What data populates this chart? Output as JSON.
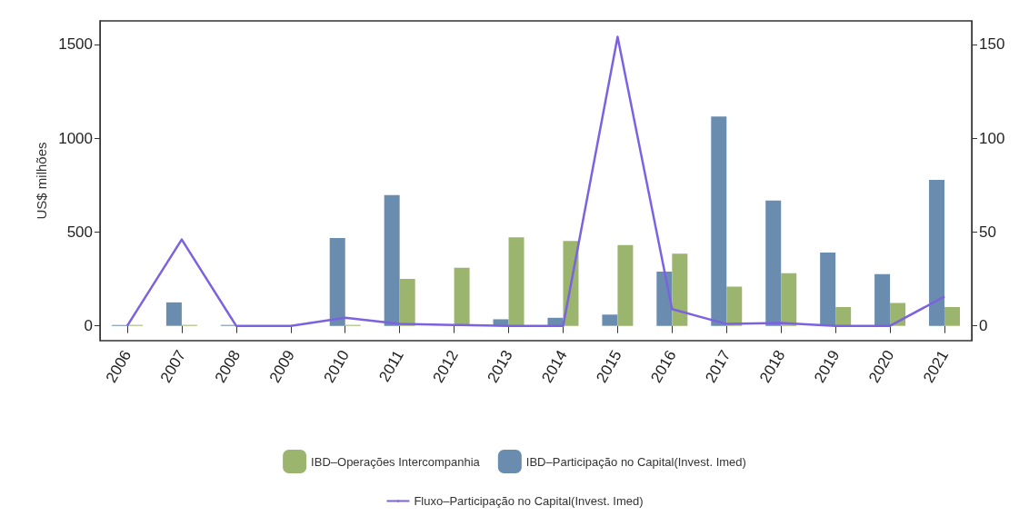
{
  "chart_data": {
    "type": "bar",
    "ylabel": "US$ milhões",
    "categories": [
      "2006",
      "2007",
      "2008",
      "2009",
      "2010",
      "2011",
      "2012",
      "2013",
      "2014",
      "2015",
      "2016",
      "2017",
      "2018",
      "2019",
      "2020",
      "2021"
    ],
    "series": [
      {
        "name": "IBD–Participação no Capital(Invest. Imed)",
        "color": "#6a8caf",
        "values": [
          5,
          125,
          5,
          0,
          468,
          697,
          0,
          35,
          43,
          60,
          289,
          1115,
          668,
          390,
          275,
          778
        ]
      },
      {
        "name": "IBD–Operações Intercompanhia",
        "color": "#9cb56e",
        "values": [
          5,
          5,
          0,
          0,
          5,
          250,
          310,
          472,
          452,
          431,
          385,
          209,
          281,
          100,
          122,
          100
        ]
      },
      {
        "name": "Fluxo–Participação no Capital(Invest. Imed)",
        "type": "line",
        "axis": "y2",
        "color": "#7b62e0",
        "values": [
          0,
          46,
          0,
          0,
          4.3,
          1,
          0.5,
          0,
          0,
          154,
          8.9,
          1,
          1.5,
          0,
          0,
          15.6
        ]
      }
    ],
    "ylim": [
      -79,
      1625
    ],
    "yticks": [
      0,
      500,
      1000,
      1500
    ],
    "y2lim": [
      -7.9,
      162.5
    ],
    "y2ticks": [
      0,
      50,
      100,
      150
    ],
    "grid": false,
    "legend": "bottom",
    "marker": "none",
    "line_style": "solid"
  }
}
